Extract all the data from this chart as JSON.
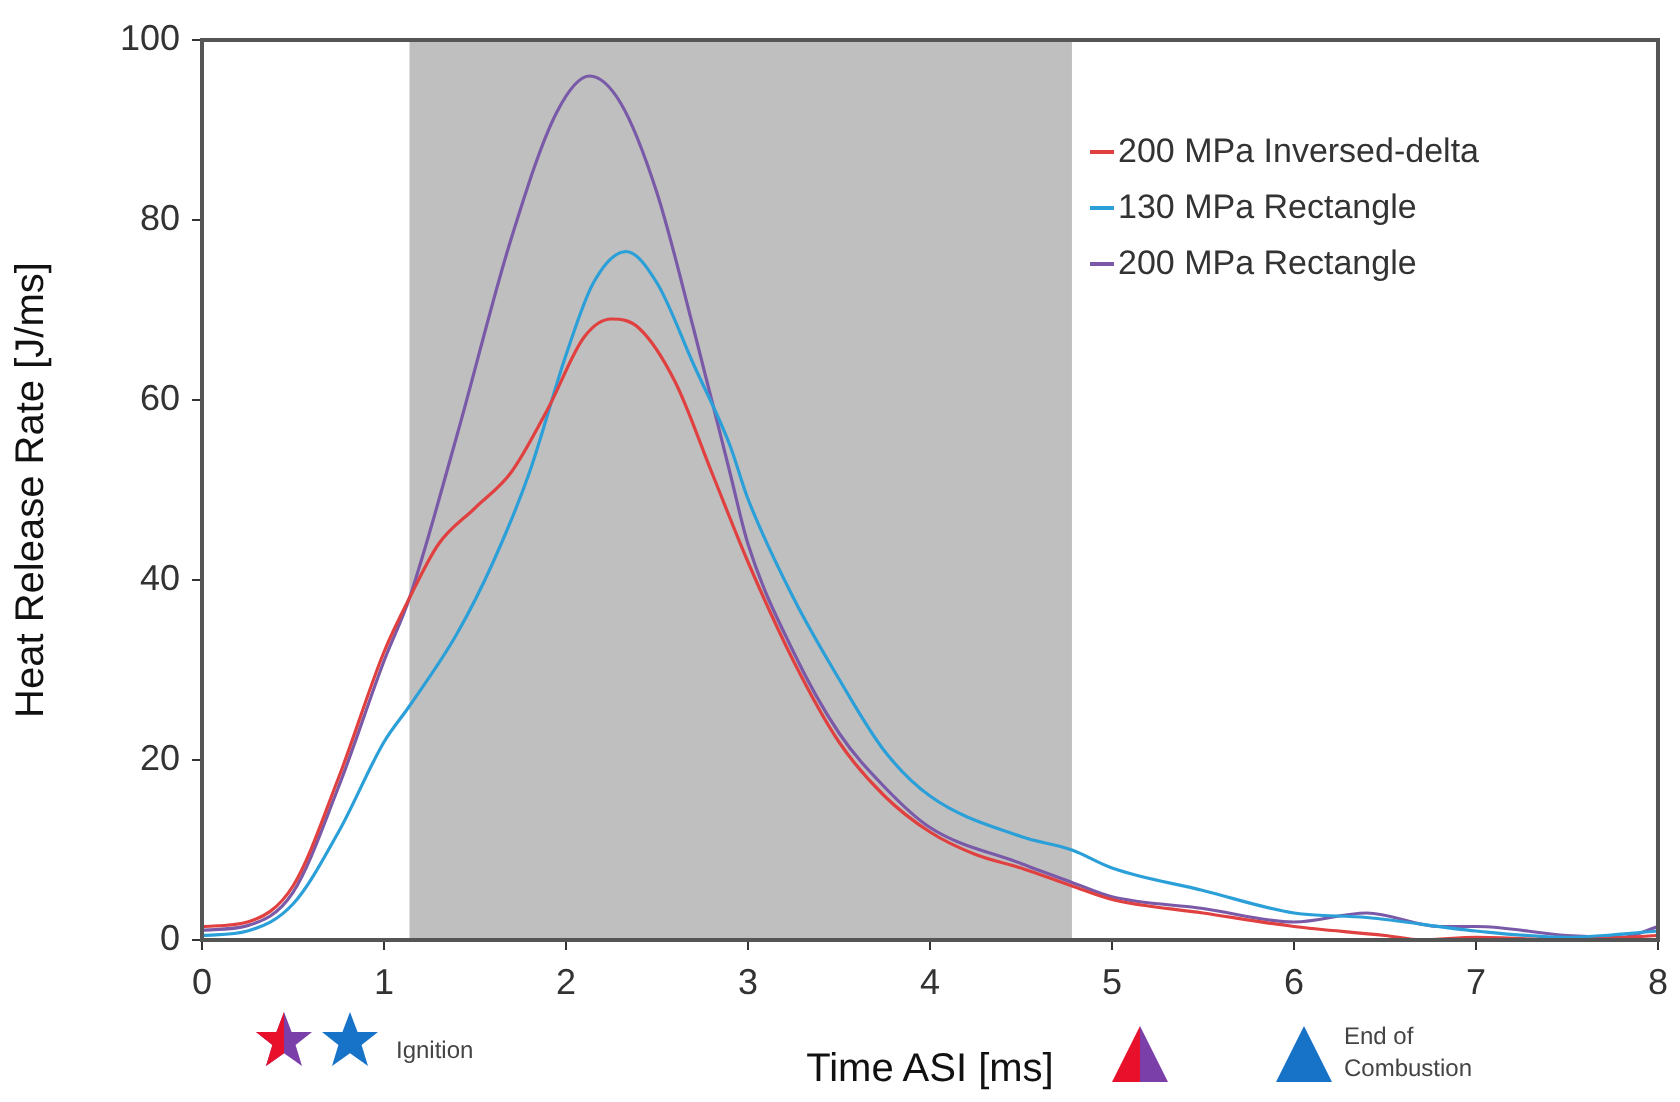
{
  "chart_data": {
    "type": "line",
    "xlabel": "Time ASI [ms]",
    "ylabel": "Heat Release Rate [J/ms]",
    "xlim": [
      0,
      8
    ],
    "xticks": [
      0,
      1,
      2,
      3,
      4,
      5,
      6,
      7,
      8
    ],
    "ylim": [
      0,
      100
    ],
    "yticks": [
      0,
      20,
      40,
      60,
      80,
      100
    ],
    "grid": false,
    "legend": "top right",
    "marker": "none",
    "line_style": "solid",
    "bands": [
      {
        "axis": "x",
        "from": 1.14,
        "to": 4.78,
        "color": "#bfbfbf"
      }
    ],
    "annotations": [
      "Ignition",
      "End of Combustion"
    ],
    "series": [
      {
        "name": "200 MPa Inversed-delta",
        "color": "#e0403f",
        "x": [
          0,
          0.25,
          0.5,
          0.75,
          1.0,
          1.14,
          1.3,
          1.5,
          1.7,
          1.9,
          2.1,
          2.25,
          2.4,
          2.6,
          2.8,
          3.0,
          3.25,
          3.5,
          3.75,
          4.0,
          4.25,
          4.5,
          4.78,
          5.0,
          5.5,
          6.0,
          6.5,
          6.7,
          7.0,
          7.5,
          8.0
        ],
        "values": [
          1.5,
          2,
          6,
          18,
          32,
          38,
          44,
          48,
          52,
          59,
          67,
          69,
          68,
          62,
          52,
          42,
          31,
          22,
          16,
          12,
          9.5,
          8,
          6,
          4.5,
          3,
          1.5,
          0.5,
          0,
          0.3,
          0,
          0.5
        ]
      },
      {
        "name": "130 MPa Rectangle",
        "color": "#2b9fd8",
        "x": [
          0,
          0.25,
          0.5,
          0.75,
          1.0,
          1.14,
          1.4,
          1.6,
          1.8,
          2.0,
          2.15,
          2.33,
          2.5,
          2.7,
          2.9,
          3.0,
          3.25,
          3.5,
          3.75,
          4.0,
          4.5,
          4.78,
          5.0,
          5.5,
          6.0,
          6.4,
          7.0,
          7.5,
          8.0
        ],
        "values": [
          0.5,
          1,
          4,
          12,
          22,
          26,
          34,
          42,
          52,
          65,
          73,
          76.5,
          73,
          64,
          55,
          49,
          38,
          29,
          21,
          16,
          11.5,
          10,
          8,
          5.5,
          3,
          2.5,
          1,
          0.3,
          1
        ]
      },
      {
        "name": "200 MPa Rectangle",
        "color": "#7a5aa8",
        "x": [
          0,
          0.25,
          0.5,
          0.75,
          1.0,
          1.14,
          1.4,
          1.7,
          1.95,
          2.13,
          2.3,
          2.5,
          2.7,
          2.9,
          3.0,
          3.25,
          3.5,
          3.75,
          4.0,
          4.5,
          4.78,
          5.0,
          5.5,
          6.0,
          6.4,
          6.8,
          7.0,
          7.5,
          7.8,
          8.0
        ],
        "values": [
          1.1,
          1.6,
          5.3,
          17,
          31,
          38,
          56,
          78,
          92,
          96,
          93,
          83,
          68,
          52,
          44,
          32,
          23,
          17,
          12.5,
          8.5,
          6.4,
          4.8,
          3.5,
          2,
          3,
          1.5,
          1.5,
          0.5,
          0.3,
          1.5
        ]
      }
    ]
  }
}
